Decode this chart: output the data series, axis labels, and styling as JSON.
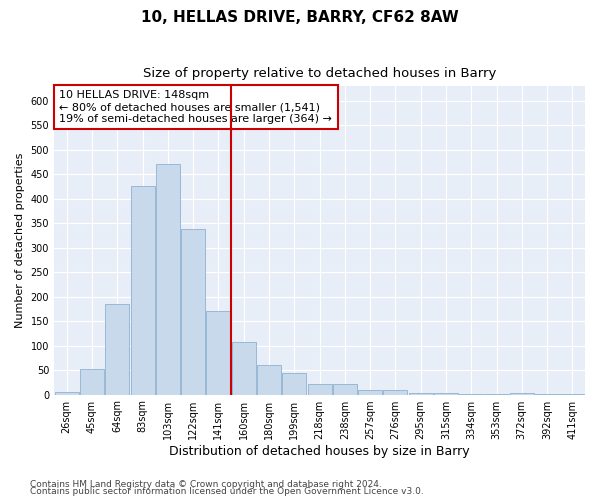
{
  "title": "10, HELLAS DRIVE, BARRY, CF62 8AW",
  "subtitle": "Size of property relative to detached houses in Barry",
  "xlabel": "Distribution of detached houses by size in Barry",
  "ylabel": "Number of detached properties",
  "categories": [
    "26sqm",
    "45sqm",
    "64sqm",
    "83sqm",
    "103sqm",
    "122sqm",
    "141sqm",
    "160sqm",
    "180sqm",
    "199sqm",
    "218sqm",
    "238sqm",
    "257sqm",
    "276sqm",
    "295sqm",
    "315sqm",
    "334sqm",
    "353sqm",
    "372sqm",
    "392sqm",
    "411sqm"
  ],
  "values": [
    5,
    52,
    185,
    425,
    470,
    338,
    170,
    108,
    60,
    45,
    22,
    22,
    10,
    10,
    4,
    3,
    2,
    1,
    4,
    2,
    2
  ],
  "bar_color": "#c9d9ec",
  "bar_edge_color": "#7fa8cc",
  "vline_index": 6,
  "vline_color": "#cc0000",
  "annotation_text": "10 HELLAS DRIVE: 148sqm\n← 80% of detached houses are smaller (1,541)\n19% of semi-detached houses are larger (364) →",
  "annotation_box_color": "#ffffff",
  "annotation_box_edge_color": "#cc0000",
  "ylim": [
    0,
    630
  ],
  "yticks": [
    0,
    50,
    100,
    150,
    200,
    250,
    300,
    350,
    400,
    450,
    500,
    550,
    600
  ],
  "background_color": "#e8eef7",
  "footer_line1": "Contains HM Land Registry data © Crown copyright and database right 2024.",
  "footer_line2": "Contains public sector information licensed under the Open Government Licence v3.0.",
  "title_fontsize": 11,
  "subtitle_fontsize": 9.5,
  "xlabel_fontsize": 9,
  "ylabel_fontsize": 8,
  "tick_fontsize": 7,
  "annotation_fontsize": 8,
  "footer_fontsize": 6.5
}
